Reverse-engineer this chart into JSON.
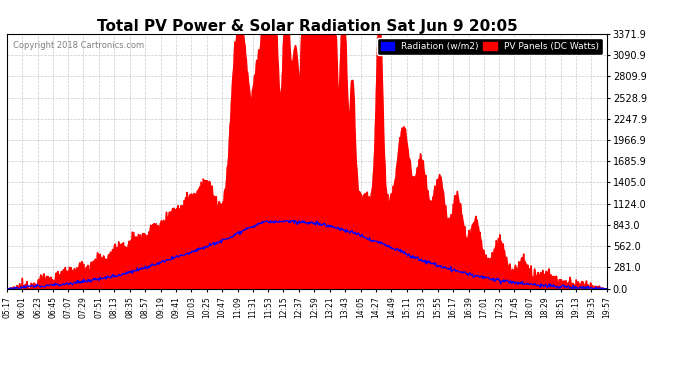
{
  "title": "Total PV Power & Solar Radiation Sat Jun 9 20:05",
  "copyright": "Copyright 2018 Cartronics.com",
  "legend_radiation": "Radiation (w/m2)",
  "legend_pv": "PV Panels (DC Watts)",
  "y_ticks": [
    0.0,
    281.0,
    562.0,
    843.0,
    1124.0,
    1405.0,
    1685.9,
    1966.9,
    2247.9,
    2528.9,
    2809.9,
    3090.9,
    3371.9
  ],
  "ymax": 3371.9,
  "ymin": 0.0,
  "bg_color": "#ffffff",
  "plot_bg_color": "#ffffff",
  "grid_color": "#bbbbbb",
  "radiation_color": "#0000ff",
  "pv_color": "#ff0000",
  "pv_fill_color": "#ff0000",
  "x_labels": [
    "05:17",
    "06:01",
    "06:23",
    "06:45",
    "07:07",
    "07:29",
    "07:51",
    "08:13",
    "08:35",
    "08:57",
    "09:19",
    "09:41",
    "10:03",
    "10:25",
    "10:47",
    "11:09",
    "11:31",
    "11:53",
    "12:15",
    "12:37",
    "12:59",
    "13:21",
    "13:43",
    "14:05",
    "14:27",
    "14:49",
    "15:11",
    "15:33",
    "15:55",
    "16:17",
    "16:39",
    "17:01",
    "17:23",
    "17:45",
    "18:07",
    "18:29",
    "18:51",
    "19:13",
    "19:35",
    "19:57"
  ],
  "n_points": 880
}
